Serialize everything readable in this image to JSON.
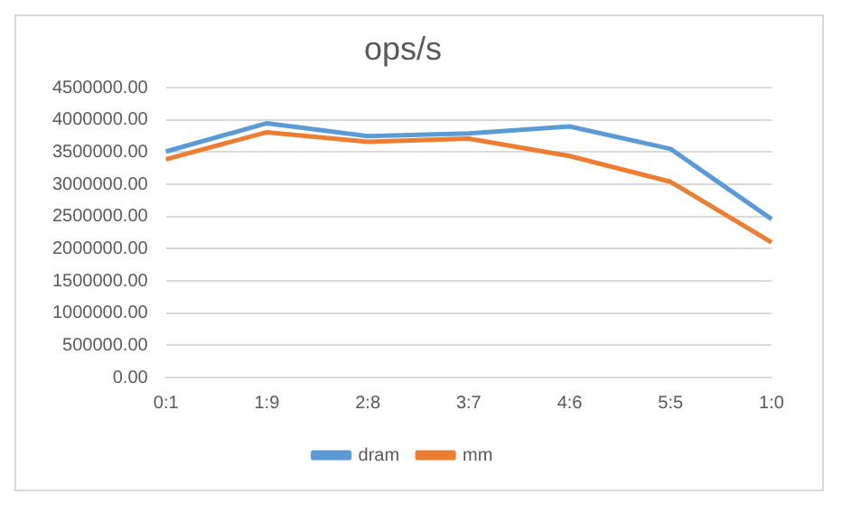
{
  "chart_data": {
    "type": "line",
    "title": "ops/s",
    "categories": [
      "0:1",
      "1:9",
      "2:8",
      "3:7",
      "4:6",
      "5:5",
      "1:0"
    ],
    "series": [
      {
        "name": "dram",
        "color": "#5b9bd5",
        "values": [
          3510000,
          3950000,
          3750000,
          3790000,
          3900000,
          3550000,
          2460000
        ]
      },
      {
        "name": "mm",
        "color": "#ed7d31",
        "values": [
          3390000,
          3810000,
          3660000,
          3710000,
          3440000,
          3040000,
          2100000
        ]
      }
    ],
    "ylim": [
      0,
      4500000
    ],
    "yticks": [
      {
        "value": 0,
        "label": "0.00"
      },
      {
        "value": 500000,
        "label": "500000.00"
      },
      {
        "value": 1000000,
        "label": "1000000.00"
      },
      {
        "value": 1500000,
        "label": "1500000.00"
      },
      {
        "value": 2000000,
        "label": "2000000.00"
      },
      {
        "value": 2500000,
        "label": "2500000.00"
      },
      {
        "value": 3000000,
        "label": "3000000.00"
      },
      {
        "value": 3500000,
        "label": "3500000.00"
      },
      {
        "value": 4000000,
        "label": "4000000.00"
      },
      {
        "value": 4500000,
        "label": "4500000.00"
      }
    ],
    "grid": "y",
    "legend": "bottom",
    "marker": "none",
    "line_style": "solid"
  }
}
